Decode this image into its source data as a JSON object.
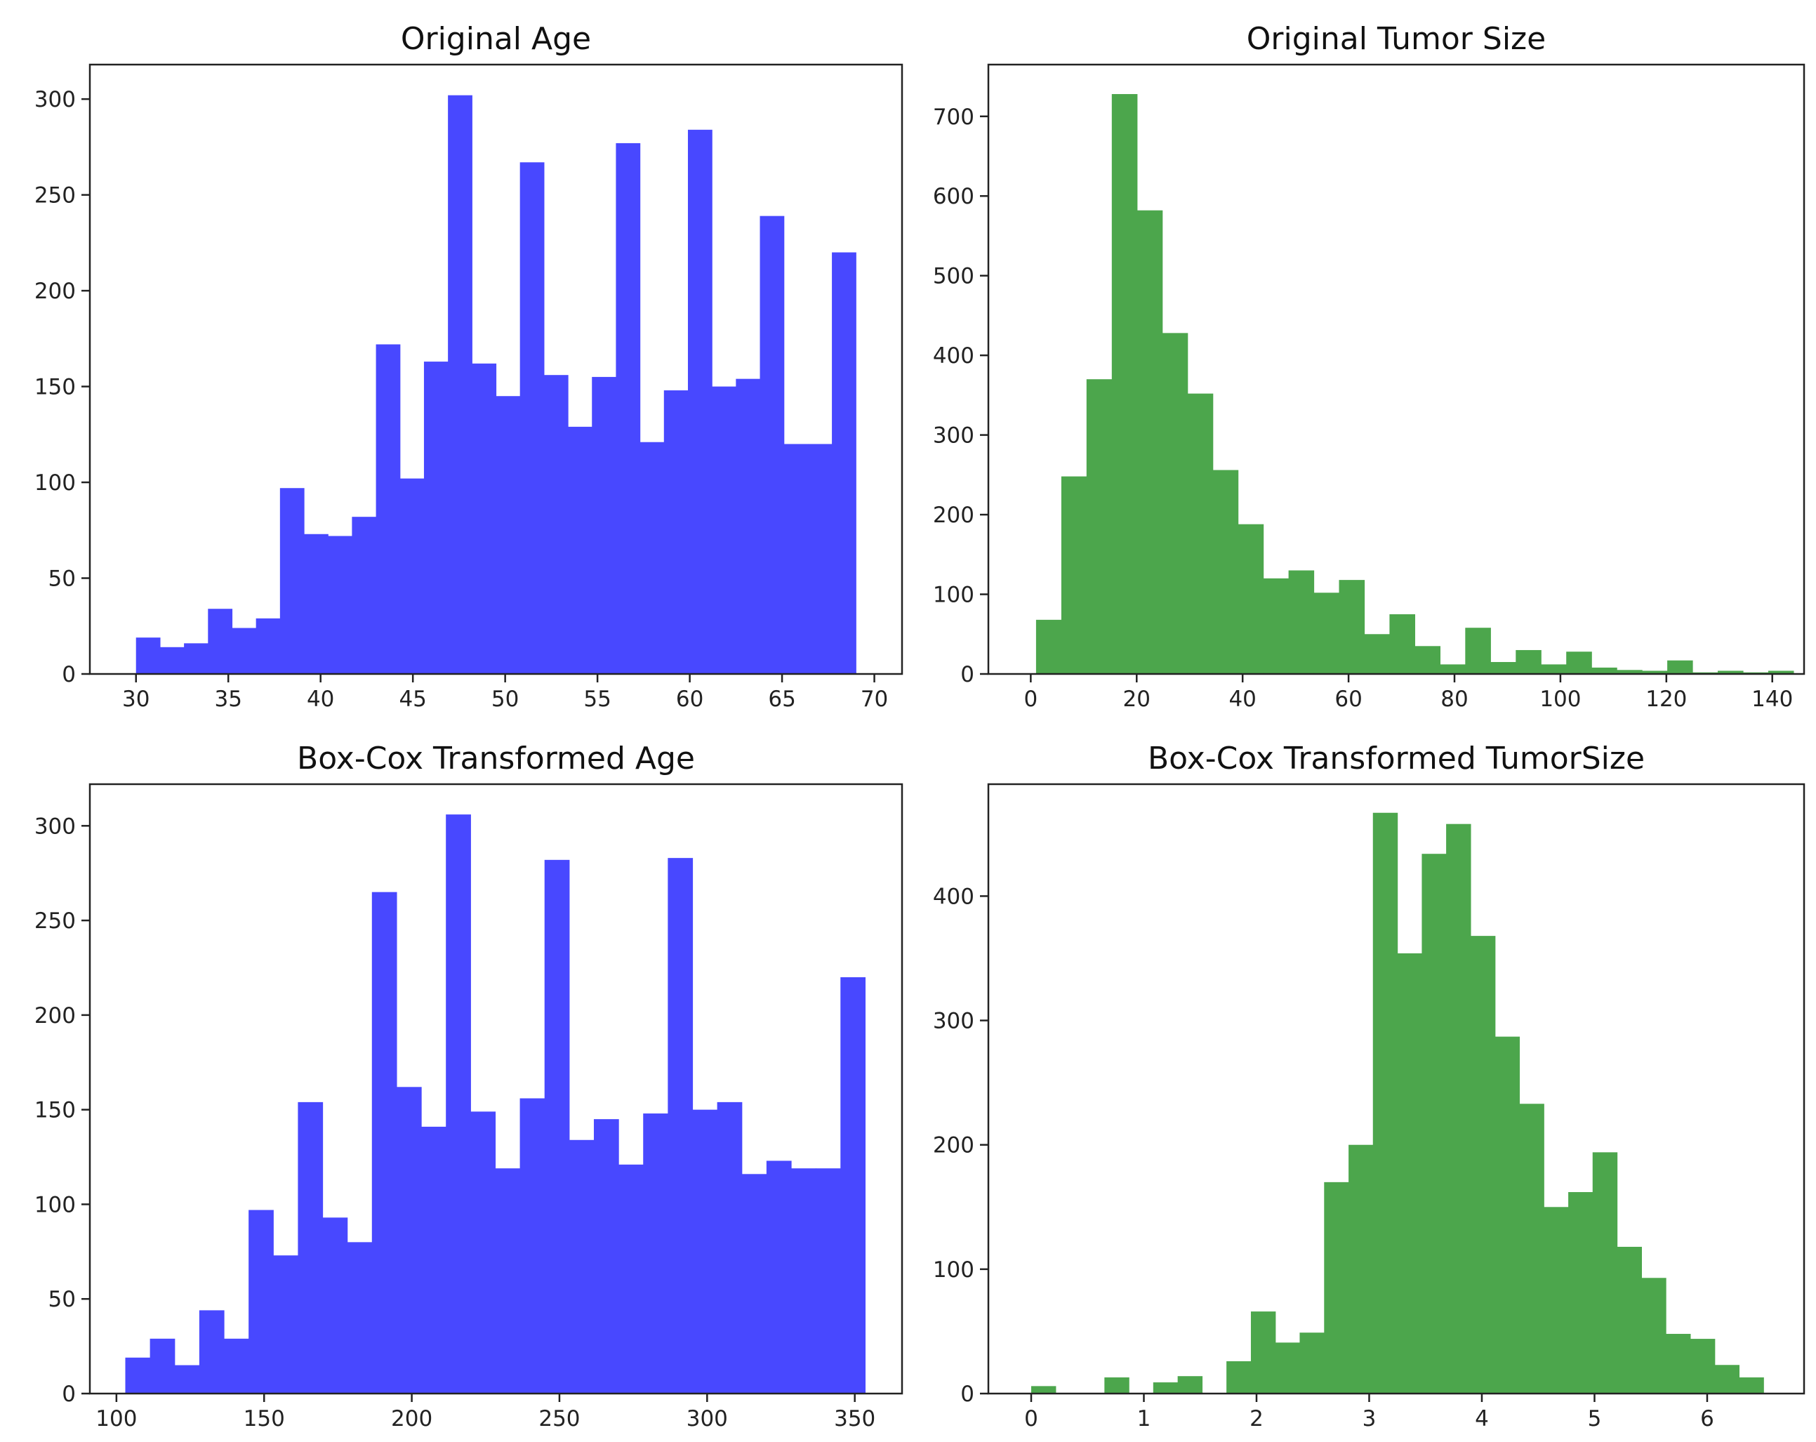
{
  "chart_data": [
    {
      "id": "orig-age",
      "type": "bar",
      "subtype": "histogram",
      "title": "Original Age",
      "xlabel": "",
      "ylabel": "",
      "color": "#4848ff",
      "xlim": [
        27.5,
        71.5
      ],
      "ylim": [
        0,
        318
      ],
      "xticks": [
        30,
        35,
        40,
        45,
        50,
        55,
        60,
        65,
        70
      ],
      "yticks": [
        0,
        50,
        100,
        150,
        200,
        250,
        300
      ],
      "bin_edges": [
        30.0,
        31.3,
        32.6,
        33.9,
        35.2,
        36.5,
        37.8,
        39.1,
        40.4,
        41.7,
        43.0,
        44.3,
        45.6,
        46.9,
        48.2,
        49.5,
        50.8,
        52.1,
        53.4,
        54.7,
        56.0,
        57.3,
        58.6,
        59.9,
        61.2,
        62.5,
        63.8,
        65.1,
        66.4,
        67.7,
        69.0
      ],
      "counts": [
        19,
        14,
        16,
        34,
        24,
        29,
        97,
        73,
        72,
        82,
        172,
        102,
        163,
        302,
        162,
        145,
        267,
        156,
        129,
        155,
        277,
        121,
        148,
        284,
        150,
        154,
        239,
        120,
        120,
        220
      ]
    },
    {
      "id": "orig-tumor",
      "type": "bar",
      "subtype": "histogram",
      "title": "Original Tumor Size",
      "xlabel": "",
      "ylabel": "",
      "color": "#4ca64c",
      "xlim": [
        -8,
        146
      ],
      "ylim": [
        0,
        765
      ],
      "xticks": [
        0,
        20,
        40,
        60,
        80,
        100,
        120,
        140
      ],
      "yticks": [
        0,
        100,
        200,
        300,
        400,
        500,
        600,
        700
      ],
      "bin_edges": [
        1.0,
        5.77,
        10.53,
        15.3,
        20.07,
        24.83,
        29.6,
        34.37,
        39.13,
        43.9,
        48.67,
        53.43,
        58.2,
        62.97,
        67.73,
        72.5,
        77.27,
        82.03,
        86.8,
        91.57,
        96.33,
        101.1,
        105.87,
        110.63,
        115.4,
        120.17,
        124.93,
        129.7,
        134.47,
        139.23,
        144.0
      ],
      "counts": [
        68,
        248,
        370,
        728,
        582,
        428,
        352,
        256,
        188,
        120,
        130,
        102,
        118,
        50,
        75,
        35,
        12,
        58,
        15,
        30,
        12,
        28,
        8,
        5,
        4,
        17,
        2,
        4,
        2,
        4
      ]
    },
    {
      "id": "bc-age",
      "type": "bar",
      "subtype": "histogram",
      "title": "Box-Cox Transformed Age",
      "xlabel": "",
      "ylabel": "",
      "color": "#4848ff",
      "xlim": [
        91,
        366
      ],
      "ylim": [
        0,
        322
      ],
      "xticks": [
        100,
        150,
        200,
        250,
        300,
        350
      ],
      "yticks": [
        0,
        50,
        100,
        150,
        200,
        250,
        300
      ],
      "bin_edges": [
        103.0,
        111.35,
        119.7,
        128.05,
        136.4,
        144.75,
        153.1,
        161.45,
        169.8,
        178.15,
        186.5,
        194.85,
        203.2,
        211.55,
        219.9,
        228.25,
        236.6,
        244.95,
        253.3,
        261.65,
        270.0,
        278.35,
        286.7,
        295.05,
        303.4,
        311.75,
        320.1,
        328.45,
        336.8,
        345.15,
        353.5
      ],
      "counts": [
        19,
        29,
        15,
        44,
        29,
        97,
        73,
        154,
        93,
        80,
        265,
        162,
        141,
        306,
        149,
        119,
        156,
        282,
        134,
        145,
        121,
        148,
        283,
        150,
        154,
        116,
        123,
        119,
        119,
        220
      ]
    },
    {
      "id": "bc-tumor",
      "type": "bar",
      "subtype": "histogram",
      "title": "Box-Cox Transformed TumorSize",
      "xlabel": "",
      "ylabel": "",
      "color": "#4ca64c",
      "xlim": [
        -0.38,
        6.86
      ],
      "ylim": [
        0,
        490
      ],
      "xticks": [
        0,
        1,
        2,
        3,
        4,
        5,
        6
      ],
      "yticks": [
        0,
        100,
        200,
        300,
        400
      ],
      "bin_edges": [
        0.0,
        0.217,
        0.433,
        0.65,
        0.867,
        1.083,
        1.3,
        1.517,
        1.733,
        1.95,
        2.167,
        2.383,
        2.6,
        2.817,
        3.033,
        3.25,
        3.467,
        3.683,
        3.9,
        4.117,
        4.333,
        4.55,
        4.767,
        4.983,
        5.2,
        5.417,
        5.633,
        5.85,
        6.067,
        6.283,
        6.5
      ],
      "counts": [
        6,
        0,
        0,
        13,
        0,
        9,
        14,
        0,
        26,
        66,
        41,
        49,
        170,
        200,
        467,
        354,
        434,
        458,
        368,
        287,
        233,
        150,
        162,
        194,
        118,
        93,
        48,
        44,
        23,
        13
      ]
    }
  ]
}
